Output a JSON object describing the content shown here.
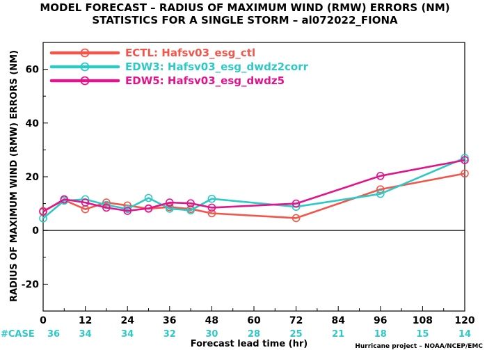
{
  "title": {
    "line1": "MODEL FORECAST – RADIUS OF MAXIMUM WIND (RMW) ERRORS (NM)",
    "line2": "STATISTICS FOR A SINGLE STORM – al072022_FIONA"
  },
  "footer": {
    "credit": "Hurricane project – NOAA/NCEP/EMC"
  },
  "colors": {
    "ECTL": "#f2564a",
    "EDW3": "#2ec9c4",
    "EDW5": "#e0148c",
    "case": "#2ec9c4"
  },
  "chart_data": {
    "type": "line",
    "title": "MODEL FORECAST – RADIUS OF MAXIMUM WIND (RMW) ERRORS (NM)",
    "subtitle": "STATISTICS FOR A SINGLE STORM – al072022_FIONA",
    "xlabel": "Forecast lead time (hr)",
    "ylabel": "RADIUS OF MAXIMUM WIND (RMW) ERRORS (NM)",
    "xlim": [
      0,
      120
    ],
    "ylim": [
      -30,
      70
    ],
    "xticks": [
      "0",
      "12",
      "24",
      "36",
      "48",
      "60",
      "72",
      "84",
      "96",
      "108",
      "120"
    ],
    "yticks": [
      "-20",
      "0",
      "20",
      "40",
      "60"
    ],
    "zero_line": true,
    "grid": false,
    "legend_position": "top-left",
    "case_label": "#CASE",
    "cases": [
      "36",
      "34",
      "34",
      "32",
      "30",
      "28",
      "25",
      "21",
      "18",
      "15",
      "14"
    ],
    "series": [
      {
        "key": "ECTL",
        "name": "ECTL: Hafsv03_esg_ctl",
        "x": [
          0,
          6,
          12,
          18,
          24,
          30,
          36,
          42,
          48,
          72,
          96,
          120
        ],
        "y": [
          7.2,
          11.3,
          7.9,
          10.4,
          9.3,
          8.1,
          8.7,
          8.0,
          6.4,
          4.6,
          15.3,
          21.2
        ]
      },
      {
        "key": "EDW3",
        "name": "EDW3: Hafsv03_esg_dwdz2corr",
        "x": [
          0,
          6,
          12,
          18,
          24,
          30,
          36,
          42,
          48,
          72,
          96,
          120
        ],
        "y": [
          4.5,
          11.1,
          11.6,
          9.5,
          8.0,
          12.1,
          8.1,
          7.5,
          11.8,
          8.8,
          13.6,
          27.0
        ]
      },
      {
        "key": "EDW5",
        "name": "EDW5: Hafsv03_esg_dwdz5",
        "x": [
          0,
          6,
          12,
          18,
          24,
          30,
          36,
          42,
          48,
          72,
          96,
          120
        ],
        "y": [
          7.0,
          11.6,
          10.4,
          8.5,
          7.3,
          8.2,
          10.4,
          10.1,
          8.5,
          10.0,
          20.3,
          26.2
        ]
      }
    ]
  }
}
